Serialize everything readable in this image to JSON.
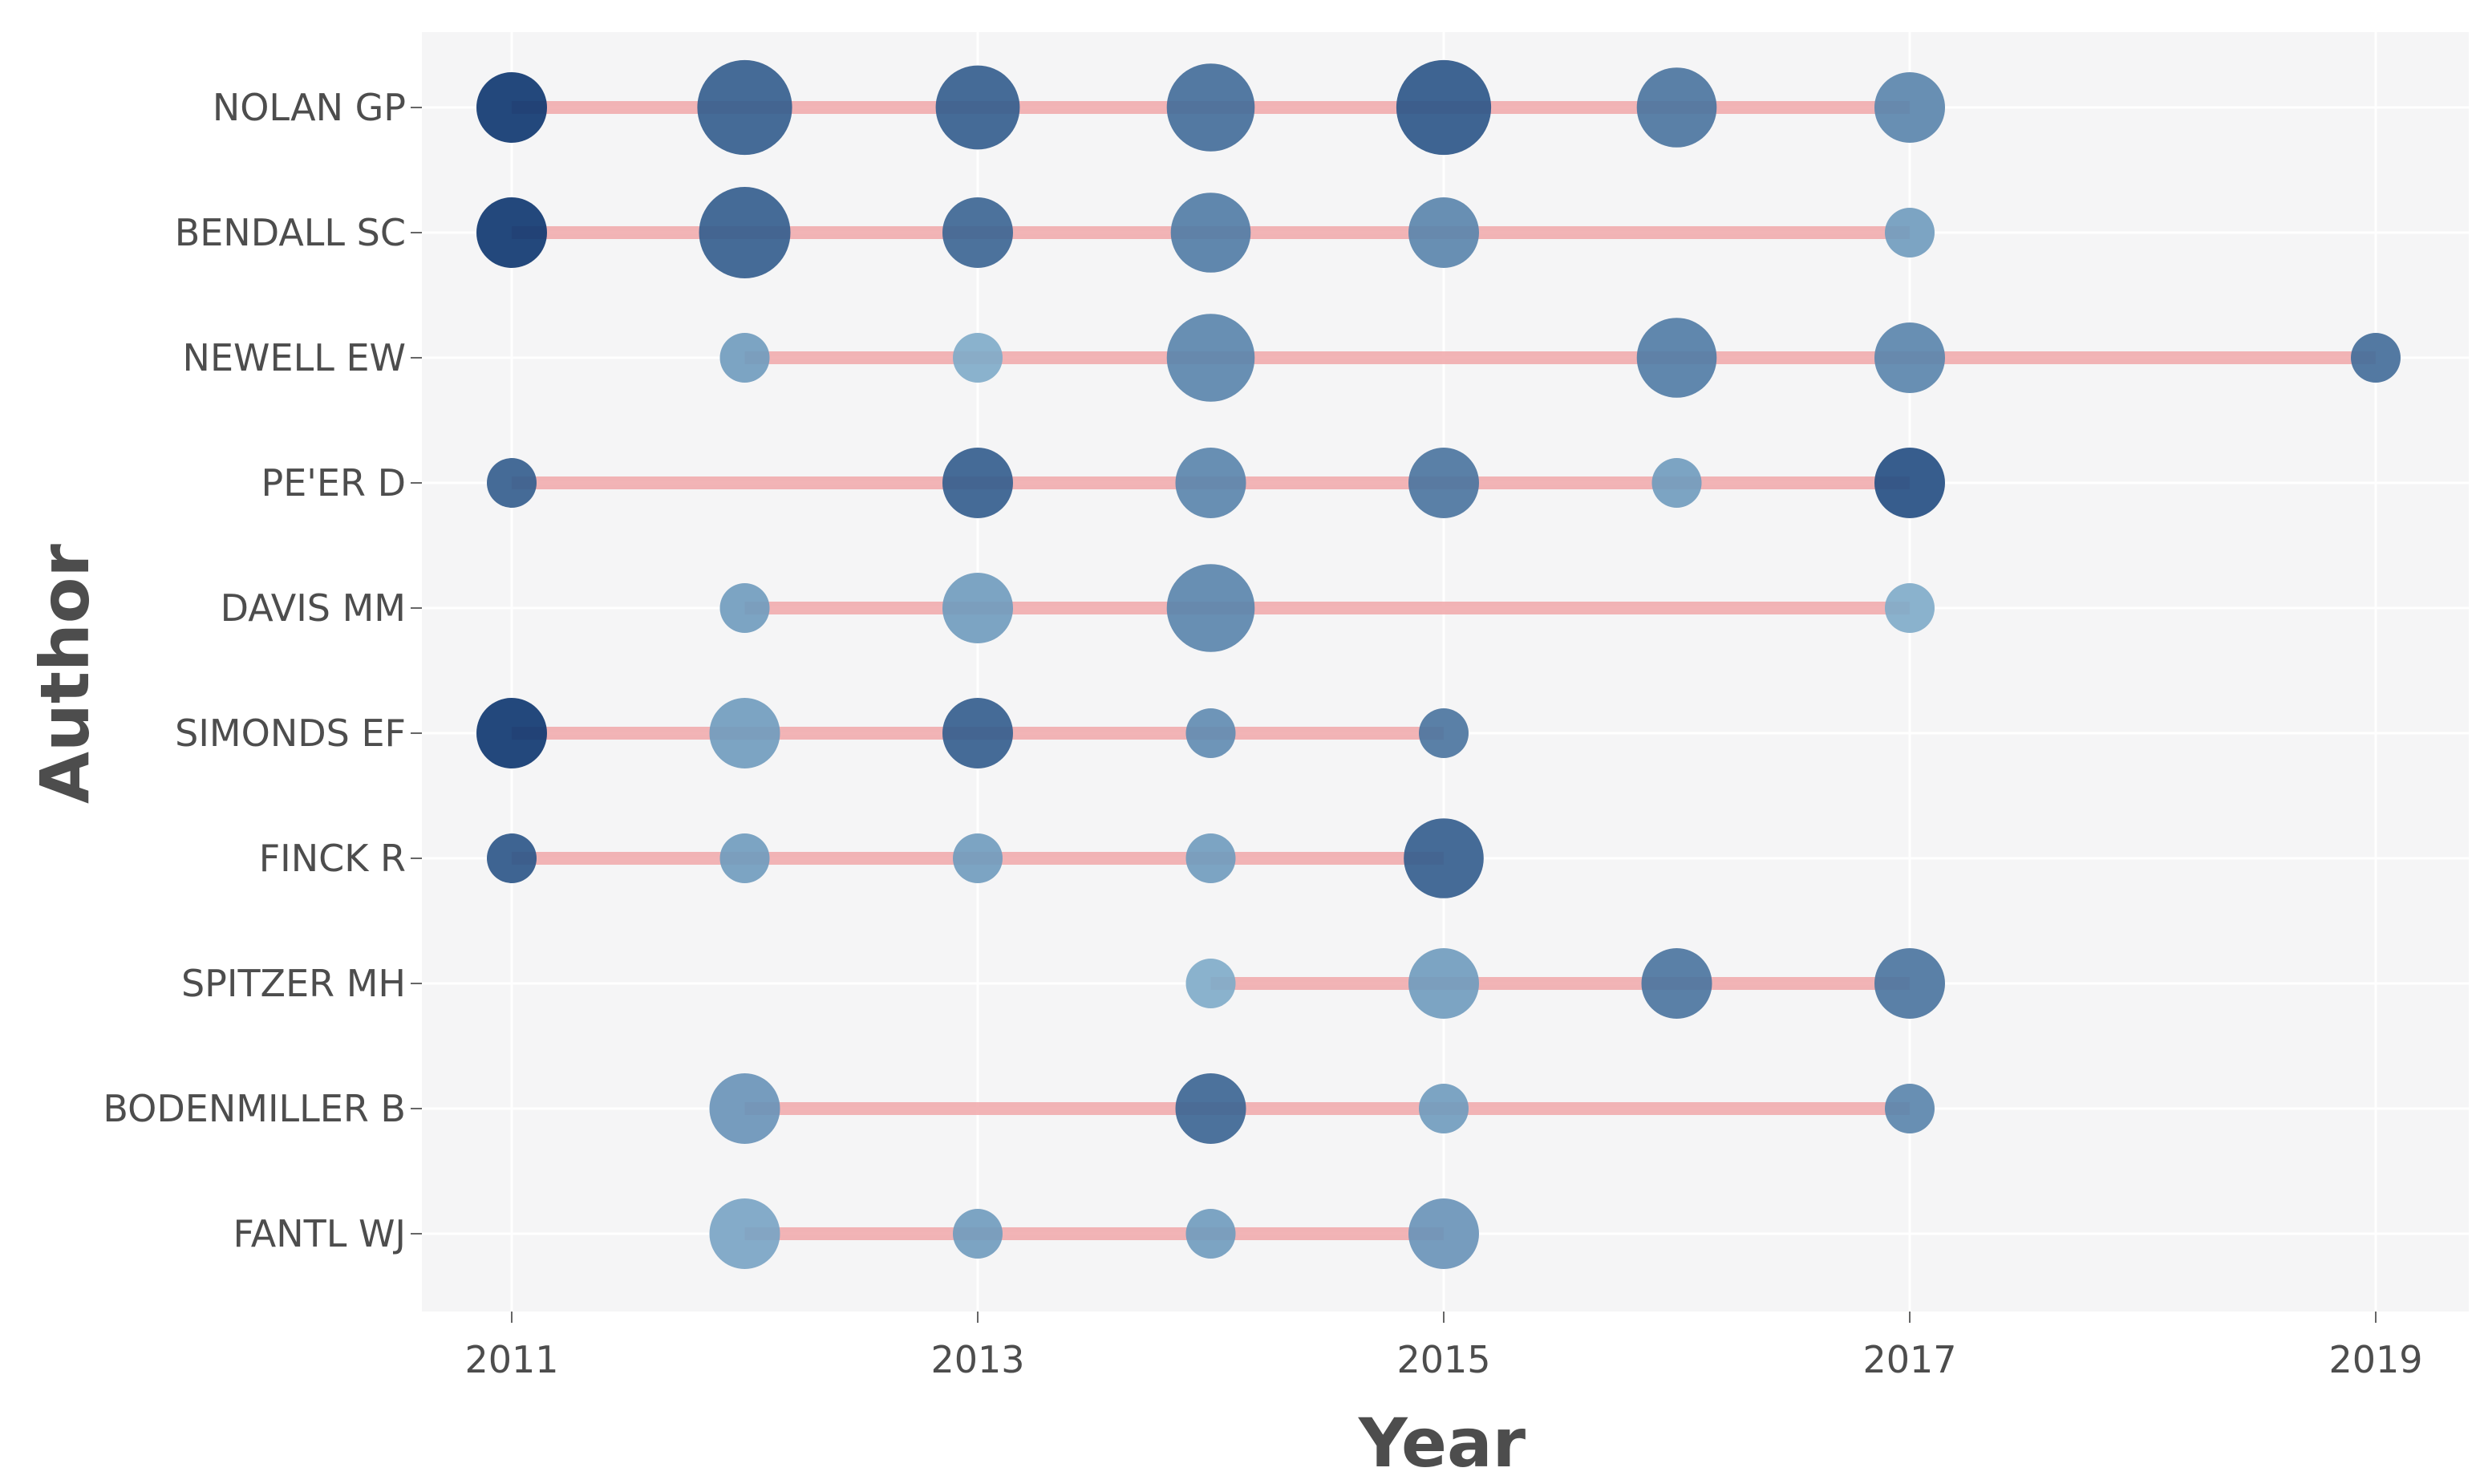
{
  "chart_data": {
    "type": "scatter",
    "xlabel": "Year",
    "ylabel": "Author",
    "xlim": [
      2010.7,
      2019.4
    ],
    "x_ticks": [
      "2011",
      "2013",
      "2015",
      "2017",
      "2019"
    ],
    "grid": true,
    "colors": {
      "panel_bg": "#f5f5f6",
      "segment": "#f0a7a9",
      "point_dark": "#08306b",
      "point_light": "#9ecae1"
    },
    "authors": [
      {
        "name": "NOLAN GP",
        "range": [
          2011,
          2017
        ],
        "points": [
          {
            "x": 2011,
            "size": 4,
            "intensity": 0.95
          },
          {
            "x": 2012,
            "size": 10,
            "intensity": 0.7
          },
          {
            "x": 2013,
            "size": 7,
            "intensity": 0.7
          },
          {
            "x": 2014,
            "size": 8,
            "intensity": 0.6
          },
          {
            "x": 2015,
            "size": 10,
            "intensity": 0.75
          },
          {
            "x": 2016,
            "size": 6,
            "intensity": 0.55
          },
          {
            "x": 2017,
            "size": 4,
            "intensity": 0.45
          }
        ]
      },
      {
        "name": "BENDALL SC",
        "range": [
          2011,
          2017
        ],
        "points": [
          {
            "x": 2011,
            "size": 4,
            "intensity": 0.95
          },
          {
            "x": 2012,
            "size": 9,
            "intensity": 0.7
          },
          {
            "x": 2013,
            "size": 4,
            "intensity": 0.65
          },
          {
            "x": 2014,
            "size": 6,
            "intensity": 0.5
          },
          {
            "x": 2015,
            "size": 4,
            "intensity": 0.45
          },
          {
            "x": 2017,
            "size": 1,
            "intensity": 0.3
          }
        ]
      },
      {
        "name": "NEWELL EW",
        "range": [
          2012,
          2019
        ],
        "points": [
          {
            "x": 2012,
            "size": 1,
            "intensity": 0.3
          },
          {
            "x": 2013,
            "size": 1,
            "intensity": 0.2
          },
          {
            "x": 2014,
            "size": 8,
            "intensity": 0.45
          },
          {
            "x": 2016,
            "size": 6,
            "intensity": 0.5
          },
          {
            "x": 2017,
            "size": 4,
            "intensity": 0.45
          },
          {
            "x": 2019,
            "size": 1,
            "intensity": 0.6
          }
        ]
      },
      {
        "name": "PE'ER D",
        "range": [
          2011,
          2017
        ],
        "points": [
          {
            "x": 2011,
            "size": 1,
            "intensity": 0.7
          },
          {
            "x": 2013,
            "size": 4,
            "intensity": 0.7
          },
          {
            "x": 2014,
            "size": 4,
            "intensity": 0.45
          },
          {
            "x": 2015,
            "size": 4,
            "intensity": 0.55
          },
          {
            "x": 2016,
            "size": 1,
            "intensity": 0.3
          },
          {
            "x": 2017,
            "size": 4,
            "intensity": 0.8
          }
        ]
      },
      {
        "name": "DAVIS MM",
        "range": [
          2012,
          2017
        ],
        "points": [
          {
            "x": 2012,
            "size": 1,
            "intensity": 0.3
          },
          {
            "x": 2013,
            "size": 4,
            "intensity": 0.3
          },
          {
            "x": 2014,
            "size": 8,
            "intensity": 0.45
          },
          {
            "x": 2017,
            "size": 1,
            "intensity": 0.2
          }
        ]
      },
      {
        "name": "SIMONDS EF",
        "range": [
          2011,
          2015
        ],
        "points": [
          {
            "x": 2011,
            "size": 4,
            "intensity": 0.95
          },
          {
            "x": 2012,
            "size": 4,
            "intensity": 0.3
          },
          {
            "x": 2013,
            "size": 4,
            "intensity": 0.7
          },
          {
            "x": 2014,
            "size": 1,
            "intensity": 0.4
          },
          {
            "x": 2015,
            "size": 1,
            "intensity": 0.55
          }
        ]
      },
      {
        "name": "FINCK R",
        "range": [
          2011,
          2015
        ],
        "points": [
          {
            "x": 2011,
            "size": 1,
            "intensity": 0.75
          },
          {
            "x": 2012,
            "size": 1,
            "intensity": 0.3
          },
          {
            "x": 2013,
            "size": 1,
            "intensity": 0.3
          },
          {
            "x": 2014,
            "size": 1,
            "intensity": 0.3
          },
          {
            "x": 2015,
            "size": 6,
            "intensity": 0.7
          }
        ]
      },
      {
        "name": "SPITZER MH",
        "range": [
          2014,
          2017
        ],
        "points": [
          {
            "x": 2014,
            "size": 1,
            "intensity": 0.2
          },
          {
            "x": 2015,
            "size": 4,
            "intensity": 0.3
          },
          {
            "x": 2016,
            "size": 4,
            "intensity": 0.55
          },
          {
            "x": 2017,
            "size": 4,
            "intensity": 0.55
          }
        ]
      },
      {
        "name": "BODENMILLER B",
        "range": [
          2012,
          2017
        ],
        "points": [
          {
            "x": 2012,
            "size": 4,
            "intensity": 0.35
          },
          {
            "x": 2014,
            "size": 4,
            "intensity": 0.65
          },
          {
            "x": 2015,
            "size": 1,
            "intensity": 0.3
          },
          {
            "x": 2017,
            "size": 1,
            "intensity": 0.45
          }
        ]
      },
      {
        "name": "FANTL WJ",
        "range": [
          2012,
          2015
        ],
        "points": [
          {
            "x": 2012,
            "size": 4,
            "intensity": 0.25
          },
          {
            "x": 2013,
            "size": 1,
            "intensity": 0.3
          },
          {
            "x": 2014,
            "size": 1,
            "intensity": 0.3
          },
          {
            "x": 2015,
            "size": 4,
            "intensity": 0.35
          }
        ]
      }
    ]
  }
}
